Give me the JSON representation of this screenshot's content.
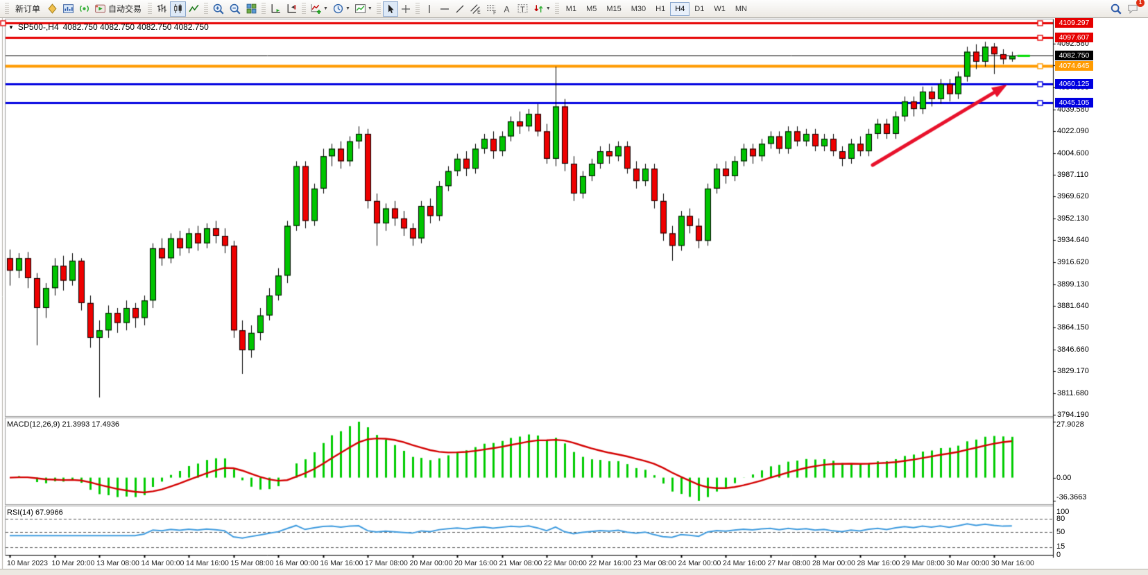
{
  "toolbar": {
    "new_order_label": "新订单",
    "autotrading_label": "自动交易",
    "timeframes": [
      "M1",
      "M5",
      "M15",
      "M30",
      "H1",
      "H4",
      "D1",
      "W1",
      "MN"
    ],
    "active_timeframe": "H4",
    "notification_badge": "1",
    "chart_type_active": "candlestick",
    "icon_names": [
      "quotes-icon",
      "new-chart-icon",
      "signals-icon",
      "autotrading-icon",
      "bar-chart-icon",
      "candlestick-icon",
      "line-chart-icon",
      "zoom-in-icon",
      "zoom-out-icon",
      "tile-windows-icon",
      "auto-scroll-icon",
      "chart-shift-icon",
      "indicators-icon",
      "periods-icon",
      "templates-icon",
      "cursor-icon",
      "crosshair-icon",
      "vertical-line-icon",
      "horizontal-line-icon",
      "trendline-icon",
      "equidistant-channel-icon",
      "fibonacci-icon",
      "text-icon",
      "text-label-icon",
      "arrows-icon",
      "search-icon",
      "notifications-icon"
    ]
  },
  "chart": {
    "dropdown_marker": "▼",
    "symbol_title": "SP500-,H4",
    "ohlc_text": "4082.750 4082.750 4082.750 4082.750",
    "bid_label": "4082.750",
    "price_ticks": [
      "4092.580",
      "4075.090",
      "4057.600",
      "4039.580",
      "4022.090",
      "4004.600",
      "3987.110",
      "3969.620",
      "3952.130",
      "3934.640",
      "3916.620",
      "3899.130",
      "3881.640",
      "3864.150",
      "3846.660",
      "3829.170",
      "3811.680",
      "3794.190"
    ],
    "colors": {
      "up_candle": "#00C400",
      "down_candle": "#EE0000",
      "wick": "#000000",
      "background": "#FFFFFF",
      "axis": "#000000"
    }
  },
  "chart_data": {
    "type": "candlestick",
    "symbol": "SP500-",
    "timeframe": "H4",
    "title": "SP500-,H4",
    "price_axis_range": [
      3793,
      4112
    ],
    "x_label_step": 5,
    "x_labels": [
      "10 Mar 2023",
      "10 Mar 20:00",
      "13 Mar 08:00",
      "14 Mar 00:00",
      "14 Mar 16:00",
      "15 Mar 08:00",
      "16 Mar 00:00",
      "16 Mar 16:00",
      "17 Mar 08:00",
      "20 Mar 00:00",
      "20 Mar 16:00",
      "21 Mar 08:00",
      "22 Mar 00:00",
      "22 Mar 16:00",
      "23 Mar 08:00",
      "24 Mar 00:00",
      "24 Mar 16:00",
      "27 Mar 08:00",
      "28 Mar 00:00",
      "28 Mar 16:00",
      "29 Mar 08:00",
      "30 Mar 00:00",
      "30 Mar 16:00"
    ],
    "candles_ohlc": [
      [
        3920,
        3927,
        3898,
        3910
      ],
      [
        3910,
        3924,
        3904,
        3920
      ],
      [
        3920,
        3925,
        3896,
        3904
      ],
      [
        3904,
        3908,
        3850,
        3880
      ],
      [
        3880,
        3900,
        3872,
        3896
      ],
      [
        3896,
        3920,
        3890,
        3914
      ],
      [
        3914,
        3922,
        3894,
        3902
      ],
      [
        3902,
        3924,
        3898,
        3918
      ],
      [
        3918,
        3920,
        3878,
        3884
      ],
      [
        3884,
        3890,
        3848,
        3856
      ],
      [
        3856,
        3870,
        3808,
        3862
      ],
      [
        3862,
        3882,
        3856,
        3876
      ],
      [
        3876,
        3880,
        3860,
        3868
      ],
      [
        3868,
        3886,
        3862,
        3880
      ],
      [
        3880,
        3884,
        3864,
        3872
      ],
      [
        3872,
        3890,
        3866,
        3886
      ],
      [
        3886,
        3932,
        3880,
        3928
      ],
      [
        3928,
        3936,
        3914,
        3920
      ],
      [
        3920,
        3940,
        3916,
        3936
      ],
      [
        3936,
        3942,
        3922,
        3928
      ],
      [
        3928,
        3944,
        3924,
        3940
      ],
      [
        3940,
        3946,
        3926,
        3932
      ],
      [
        3932,
        3948,
        3928,
        3944
      ],
      [
        3944,
        3950,
        3932,
        3938
      ],
      [
        3938,
        3944,
        3924,
        3930
      ],
      [
        3930,
        3934,
        3856,
        3862
      ],
      [
        3862,
        3870,
        3827,
        3846
      ],
      [
        3846,
        3866,
        3840,
        3860
      ],
      [
        3860,
        3880,
        3854,
        3874
      ],
      [
        3874,
        3896,
        3870,
        3890
      ],
      [
        3890,
        3912,
        3886,
        3906
      ],
      [
        3906,
        3950,
        3900,
        3946
      ],
      [
        3946,
        3998,
        3942,
        3994
      ],
      [
        3994,
        3998,
        3944,
        3950
      ],
      [
        3950,
        3980,
        3946,
        3976
      ],
      [
        3976,
        4008,
        3972,
        4002
      ],
      [
        4002,
        4012,
        3994,
        4008
      ],
      [
        4008,
        4014,
        3992,
        3998
      ],
      [
        3998,
        4018,
        3994,
        4014
      ],
      [
        4014,
        4026,
        4008,
        4020
      ],
      [
        4020,
        4024,
        3960,
        3966
      ],
      [
        3966,
        3972,
        3930,
        3948
      ],
      [
        3948,
        3964,
        3942,
        3960
      ],
      [
        3960,
        3966,
        3946,
        3952
      ],
      [
        3952,
        3958,
        3938,
        3944
      ],
      [
        3944,
        3948,
        3930,
        3936
      ],
      [
        3936,
        3966,
        3932,
        3962
      ],
      [
        3962,
        3968,
        3948,
        3954
      ],
      [
        3954,
        3982,
        3950,
        3978
      ],
      [
        3978,
        3994,
        3974,
        3990
      ],
      [
        3990,
        4004,
        3986,
        4000
      ],
      [
        4000,
        4006,
        3986,
        3992
      ],
      [
        3992,
        4012,
        3988,
        4008
      ],
      [
        4008,
        4020,
        4004,
        4016
      ],
      [
        4016,
        4022,
        4000,
        4006
      ],
      [
        4006,
        4022,
        4002,
        4018
      ],
      [
        4018,
        4034,
        4014,
        4030
      ],
      [
        4030,
        4038,
        4020,
        4026
      ],
      [
        4026,
        4040,
        4022,
        4036
      ],
      [
        4036,
        4044,
        4018,
        4022
      ],
      [
        4022,
        4028,
        3996,
        4000
      ],
      [
        4000,
        4074,
        3994,
        4042
      ],
      [
        4042,
        4048,
        3990,
        3996
      ],
      [
        3996,
        4002,
        3966,
        3972
      ],
      [
        3972,
        3990,
        3968,
        3986
      ],
      [
        3986,
        4000,
        3982,
        3996
      ],
      [
        3996,
        4010,
        3992,
        4006
      ],
      [
        4006,
        4012,
        3996,
        4002
      ],
      [
        4002,
        4014,
        3998,
        4010
      ],
      [
        4010,
        4014,
        3988,
        3992
      ],
      [
        3992,
        3998,
        3976,
        3982
      ],
      [
        3982,
        3996,
        3978,
        3992
      ],
      [
        3992,
        3996,
        3960,
        3966
      ],
      [
        3966,
        3972,
        3934,
        3940
      ],
      [
        3940,
        3946,
        3918,
        3930
      ],
      [
        3930,
        3958,
        3926,
        3954
      ],
      [
        3954,
        3960,
        3940,
        3946
      ],
      [
        3946,
        3952,
        3928,
        3934
      ],
      [
        3934,
        3980,
        3930,
        3976
      ],
      [
        3976,
        3996,
        3972,
        3992
      ],
      [
        3992,
        3998,
        3980,
        3986
      ],
      [
        3986,
        4002,
        3982,
        3998
      ],
      [
        3998,
        4012,
        3994,
        4008
      ],
      [
        4008,
        4012,
        3996,
        4002
      ],
      [
        4002,
        4016,
        3998,
        4012
      ],
      [
        4012,
        4022,
        4008,
        4018
      ],
      [
        4018,
        4022,
        4004,
        4008
      ],
      [
        4008,
        4026,
        4004,
        4022
      ],
      [
        4022,
        4026,
        4010,
        4014
      ],
      [
        4014,
        4024,
        4010,
        4020
      ],
      [
        4020,
        4024,
        4006,
        4010
      ],
      [
        4010,
        4020,
        4006,
        4016
      ],
      [
        4016,
        4020,
        4002,
        4006
      ],
      [
        4006,
        4010,
        3994,
        4000
      ],
      [
        4000,
        4016,
        3996,
        4012
      ],
      [
        4012,
        4018,
        4002,
        4006
      ],
      [
        4006,
        4024,
        4002,
        4020
      ],
      [
        4020,
        4032,
        4016,
        4028
      ],
      [
        4028,
        4032,
        4016,
        4020
      ],
      [
        4020,
        4038,
        4016,
        4034
      ],
      [
        4034,
        4050,
        4030,
        4046
      ],
      [
        4046,
        4050,
        4034,
        4040
      ],
      [
        4040,
        4058,
        4036,
        4054
      ],
      [
        4054,
        4058,
        4042,
        4048
      ],
      [
        4048,
        4064,
        4044,
        4060
      ],
      [
        4060,
        4064,
        4046,
        4052
      ],
      [
        4052,
        4070,
        4048,
        4066
      ],
      [
        4066,
        4090,
        4062,
        4086
      ],
      [
        4086,
        4092,
        4072,
        4078
      ],
      [
        4078,
        4094,
        4074,
        4090
      ],
      [
        4090,
        4093,
        4068,
        4084
      ],
      [
        4084,
        4088,
        4076,
        4080
      ],
      [
        4080,
        4086,
        4078,
        4082.8
      ]
    ],
    "hlines": [
      {
        "label": "4109.297",
        "price": 4109.297,
        "color": "#E60000",
        "width": 3
      },
      {
        "label": "4097.607",
        "price": 4097.607,
        "color": "#E60000",
        "width": 3
      },
      {
        "label": "4082.750",
        "price": 4082.75,
        "color": "#000000",
        "width": 1,
        "is_bid": true
      },
      {
        "label": "4074.645",
        "price": 4074.645,
        "color": "#FF9B00",
        "width": 4
      },
      {
        "label": "4060.125",
        "price": 4060.125,
        "color": "#0000E0",
        "width": 3
      },
      {
        "label": "4045.105",
        "price": 4045.105,
        "color": "#0000E0",
        "width": 3
      }
    ],
    "indicators": {
      "macd": {
        "label": "MACD(12,26,9) 21.3993 17.4936",
        "params": "12,26,9",
        "value_main": "21.3993",
        "value_signal": "17.4936",
        "axis_labels": [
          "27.9028",
          "0.00",
          "-36.3663"
        ],
        "histogram_color": "#00CC00",
        "signal_color": "#D40000"
      },
      "rsi": {
        "label": "RSI(14) 67.9966",
        "period": "14",
        "value": "67.9966",
        "axis_labels": [
          "100",
          "80",
          "50",
          "15",
          "0"
        ],
        "levels": [
          80,
          50,
          15
        ],
        "line_color": "#3E9BDF"
      }
    },
    "annotations": [
      {
        "type": "trend-arrow",
        "from_xy": [
          1258,
          212
        ],
        "to_xy": [
          1452,
          96
        ],
        "color": "#E8122C"
      },
      {
        "type": "last-price-dash",
        "color": "#00DC00",
        "price": 4082.75
      }
    ]
  }
}
